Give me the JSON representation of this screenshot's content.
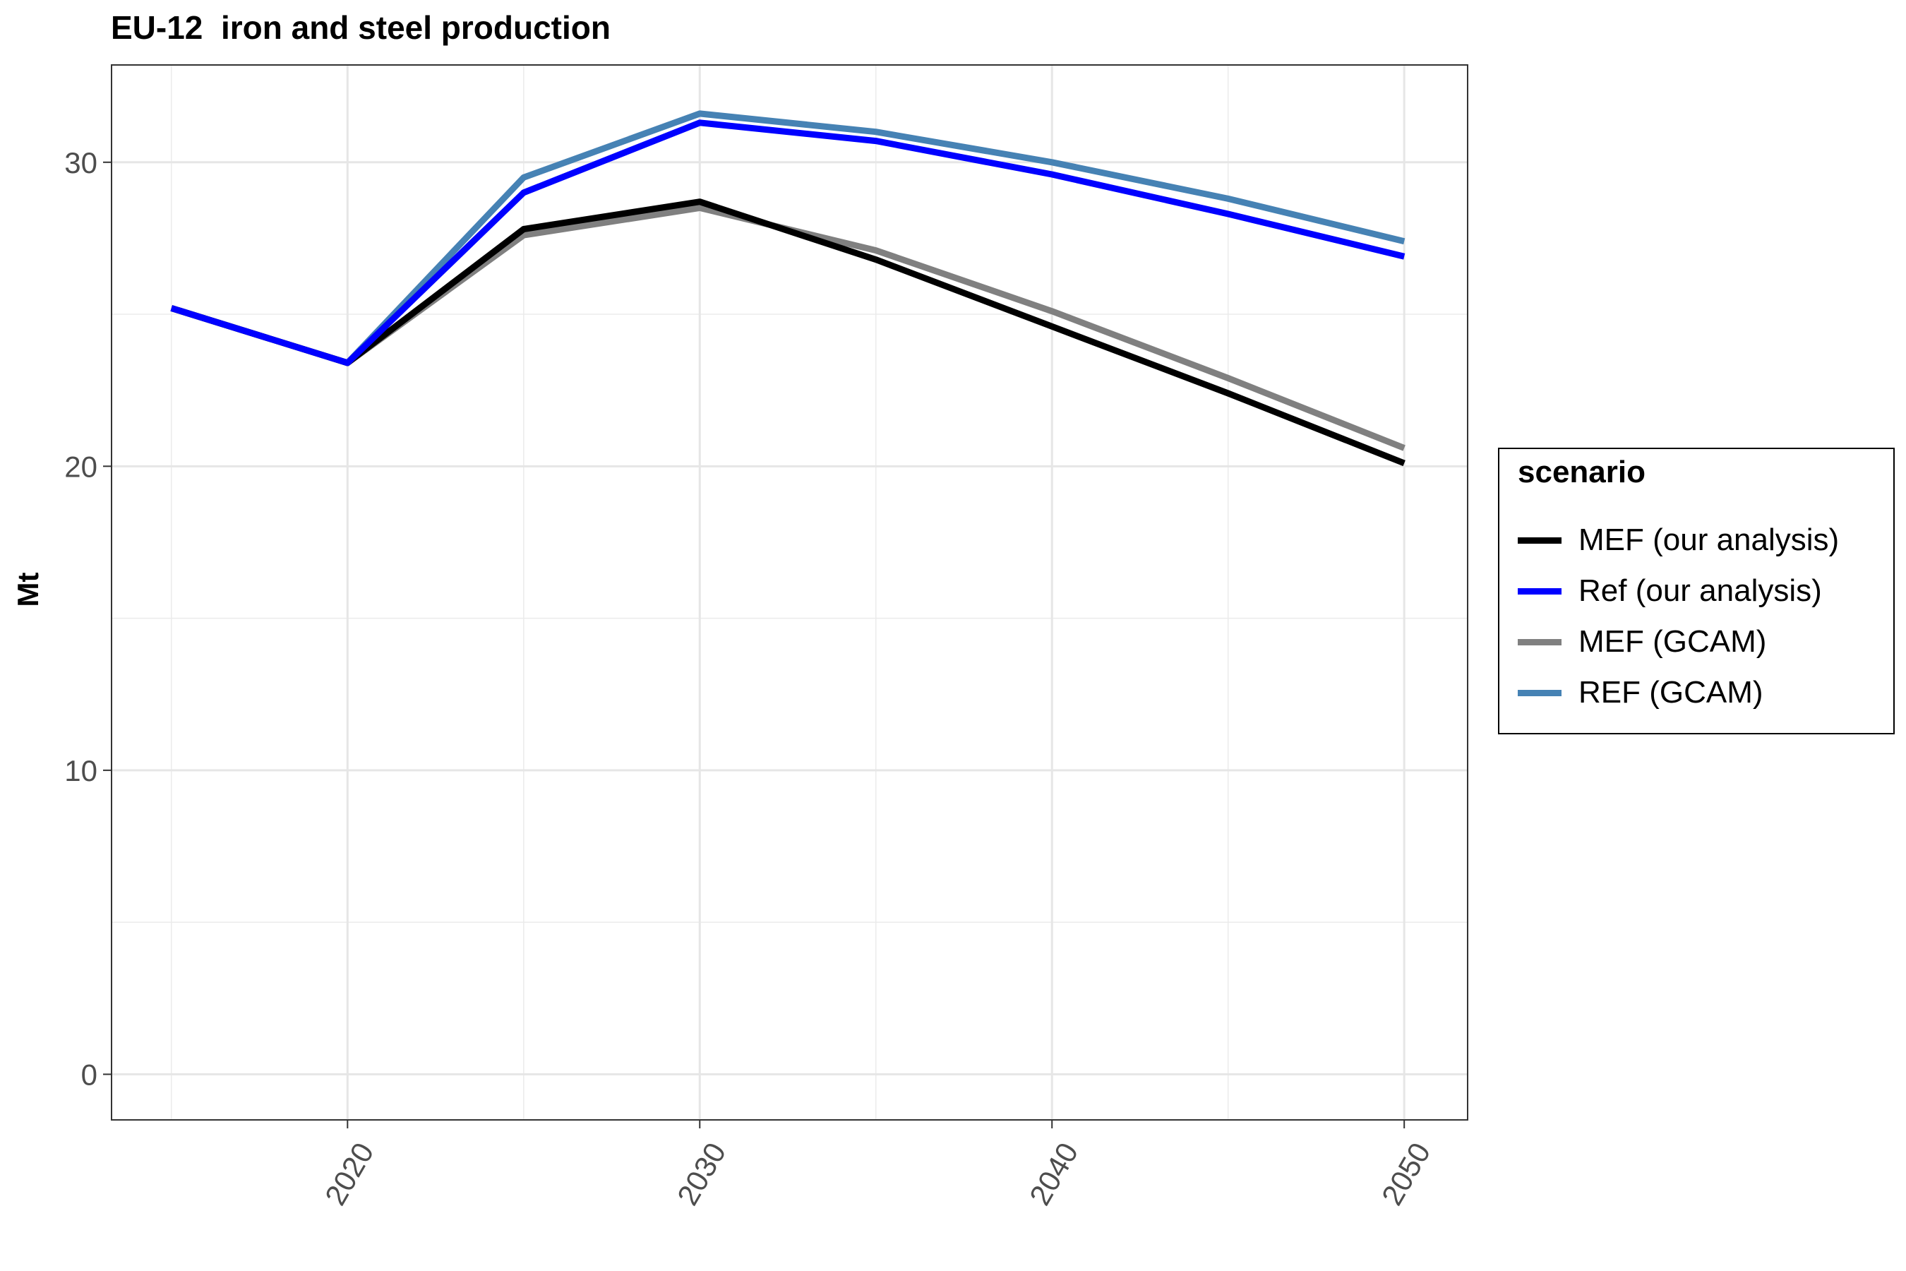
{
  "chart_data": {
    "type": "line",
    "title": "EU-12  iron and steel production",
    "xlabel": "",
    "ylabel": "Mt",
    "x_ticks": [
      2020,
      2030,
      2040,
      2050
    ],
    "y_ticks": [
      0,
      10,
      20,
      30
    ],
    "xlim": [
      2013.3,
      2051.8
    ],
    "ylim": [
      -1.5,
      33.2
    ],
    "grid": true,
    "legend": {
      "title": "scenario",
      "position": "right"
    },
    "series": [
      {
        "name": "MEF (GCAM)",
        "color": "#808080",
        "x": [
          2015,
          2020,
          2025,
          2030,
          2035,
          2040,
          2045,
          2050
        ],
        "y": [
          25.2,
          23.4,
          27.6,
          28.5,
          27.1,
          25.1,
          22.9,
          20.6
        ]
      },
      {
        "name": "REF (GCAM)",
        "color": "#4682B4",
        "x": [
          2015,
          2020,
          2025,
          2030,
          2035,
          2040,
          2045,
          2050
        ],
        "y": [
          25.2,
          23.4,
          29.5,
          31.6,
          31.0,
          30.0,
          28.8,
          27.4
        ]
      },
      {
        "name": "MEF (our analysis)",
        "color": "#000000",
        "x": [
          2015,
          2020,
          2025,
          2030,
          2035,
          2040,
          2045,
          2050
        ],
        "y": [
          25.2,
          23.4,
          27.8,
          28.7,
          26.8,
          24.6,
          22.4,
          20.1
        ]
      },
      {
        "name": "Ref (our analysis)",
        "color": "#0000FF",
        "x": [
          2015,
          2020,
          2025,
          2030,
          2035,
          2040,
          2045,
          2050
        ],
        "y": [
          25.2,
          23.4,
          29.0,
          31.3,
          30.7,
          29.6,
          28.3,
          26.9
        ]
      }
    ],
    "legend_order": [
      "MEF (our analysis)",
      "Ref (our analysis)",
      "MEF (GCAM)",
      "REF (GCAM)"
    ]
  }
}
